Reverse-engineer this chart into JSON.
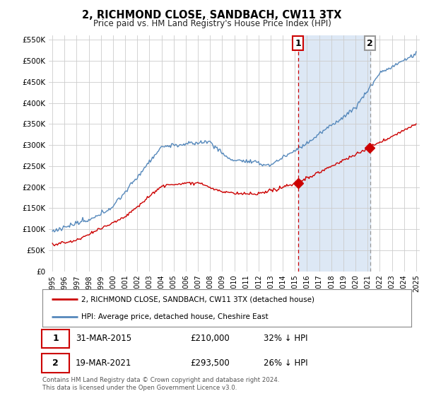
{
  "title": "2, RICHMOND CLOSE, SANDBACH, CW11 3TX",
  "subtitle": "Price paid vs. HM Land Registry's House Price Index (HPI)",
  "ylim": [
    0,
    560000
  ],
  "yticks": [
    0,
    50000,
    100000,
    150000,
    200000,
    250000,
    300000,
    350000,
    400000,
    450000,
    500000,
    550000
  ],
  "ytick_labels": [
    "£0",
    "£50K",
    "£100K",
    "£150K",
    "£200K",
    "£250K",
    "£300K",
    "£350K",
    "£400K",
    "£450K",
    "£500K",
    "£550K"
  ],
  "x_start_year": 1995,
  "x_end_year": 2025,
  "red_line_color": "#cc0000",
  "blue_line_color": "#5588bb",
  "blue_fill_color": "#dde8f5",
  "marker1_year": 2015.25,
  "marker2_year": 2021.2,
  "marker1_price": 210000,
  "marker2_price": 293500,
  "dashed1_color": "#cc0000",
  "dashed2_color": "#999999",
  "legend_label_red": "2, RICHMOND CLOSE, SANDBACH, CW11 3TX (detached house)",
  "legend_label_blue": "HPI: Average price, detached house, Cheshire East",
  "table_row1": [
    "1",
    "31-MAR-2015",
    "£210,000",
    "32% ↓ HPI"
  ],
  "table_row2": [
    "2",
    "19-MAR-2021",
    "£293,500",
    "26% ↓ HPI"
  ],
  "footnote": "Contains HM Land Registry data © Crown copyright and database right 2024.\nThis data is licensed under the Open Government Licence v3.0.",
  "bg_color": "#ffffff",
  "plot_bg_color": "#ffffff",
  "grid_color": "#cccccc"
}
